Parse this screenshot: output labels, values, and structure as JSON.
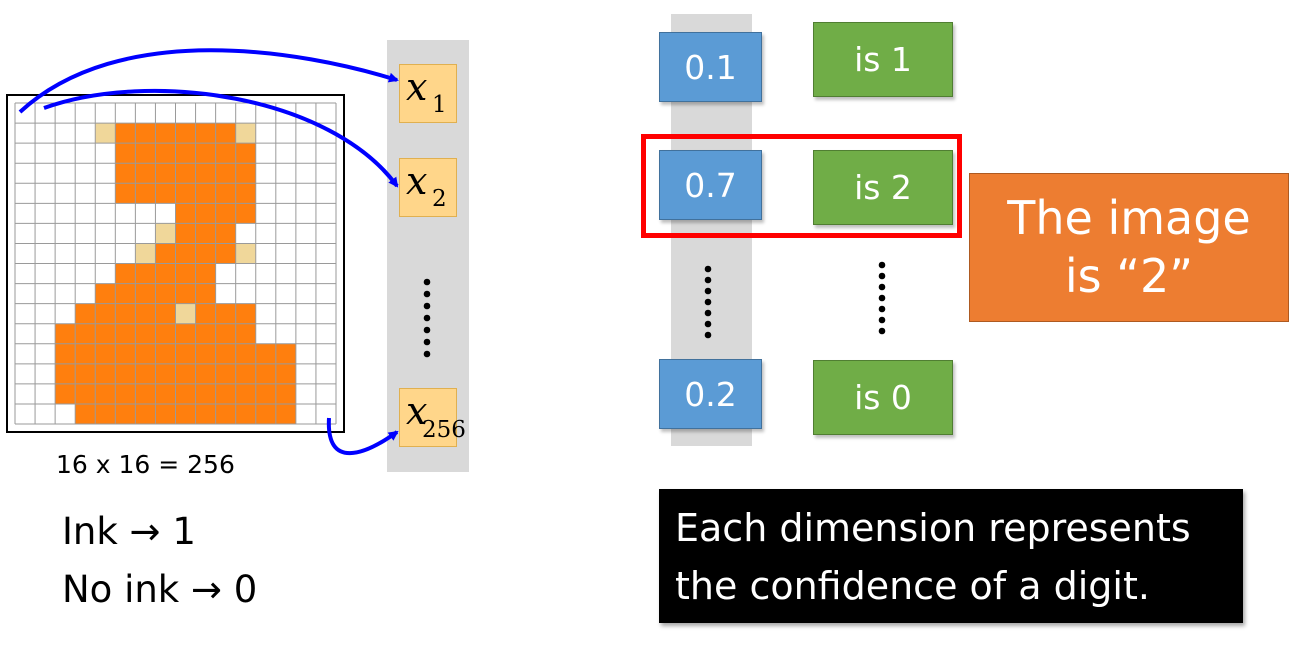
{
  "pixel_grid": {
    "size": 16,
    "ink_color": "#ff7f0e",
    "partial_color": "#f0d79a",
    "ink_cells": [
      [
        1,
        5
      ],
      [
        1,
        6
      ],
      [
        1,
        7
      ],
      [
        1,
        8
      ],
      [
        1,
        9
      ],
      [
        1,
        10
      ],
      [
        2,
        5
      ],
      [
        2,
        6
      ],
      [
        2,
        7
      ],
      [
        2,
        8
      ],
      [
        2,
        9
      ],
      [
        2,
        10
      ],
      [
        2,
        11
      ],
      [
        3,
        5
      ],
      [
        3,
        6
      ],
      [
        3,
        7
      ],
      [
        3,
        8
      ],
      [
        3,
        9
      ],
      [
        3,
        10
      ],
      [
        3,
        11
      ],
      [
        4,
        5
      ],
      [
        4,
        6
      ],
      [
        4,
        7
      ],
      [
        4,
        8
      ],
      [
        4,
        9
      ],
      [
        4,
        10
      ],
      [
        4,
        11
      ],
      [
        5,
        8
      ],
      [
        5,
        9
      ],
      [
        5,
        10
      ],
      [
        5,
        11
      ],
      [
        6,
        8
      ],
      [
        6,
        9
      ],
      [
        6,
        10
      ],
      [
        7,
        7
      ],
      [
        7,
        8
      ],
      [
        7,
        9
      ],
      [
        7,
        10
      ],
      [
        8,
        5
      ],
      [
        8,
        6
      ],
      [
        8,
        7
      ],
      [
        8,
        8
      ],
      [
        8,
        9
      ],
      [
        9,
        4
      ],
      [
        9,
        5
      ],
      [
        9,
        6
      ],
      [
        9,
        7
      ],
      [
        9,
        8
      ],
      [
        9,
        9
      ],
      [
        10,
        3
      ],
      [
        10,
        4
      ],
      [
        10,
        5
      ],
      [
        10,
        6
      ],
      [
        10,
        7
      ],
      [
        10,
        9
      ],
      [
        10,
        10
      ],
      [
        10,
        11
      ],
      [
        11,
        2
      ],
      [
        11,
        3
      ],
      [
        11,
        4
      ],
      [
        11,
        5
      ],
      [
        11,
        6
      ],
      [
        11,
        7
      ],
      [
        11,
        8
      ],
      [
        11,
        9
      ],
      [
        11,
        10
      ],
      [
        11,
        11
      ],
      [
        12,
        2
      ],
      [
        12,
        3
      ],
      [
        12,
        4
      ],
      [
        12,
        5
      ],
      [
        12,
        6
      ],
      [
        12,
        7
      ],
      [
        12,
        8
      ],
      [
        12,
        9
      ],
      [
        12,
        10
      ],
      [
        12,
        11
      ],
      [
        12,
        12
      ],
      [
        12,
        13
      ],
      [
        13,
        2
      ],
      [
        13,
        3
      ],
      [
        13,
        4
      ],
      [
        13,
        5
      ],
      [
        13,
        6
      ],
      [
        13,
        7
      ],
      [
        13,
        8
      ],
      [
        13,
        9
      ],
      [
        13,
        10
      ],
      [
        13,
        11
      ],
      [
        13,
        12
      ],
      [
        13,
        13
      ],
      [
        14,
        2
      ],
      [
        14,
        3
      ],
      [
        14,
        4
      ],
      [
        14,
        5
      ],
      [
        14,
        6
      ],
      [
        14,
        7
      ],
      [
        14,
        8
      ],
      [
        14,
        9
      ],
      [
        14,
        10
      ],
      [
        14,
        11
      ],
      [
        14,
        12
      ],
      [
        14,
        13
      ],
      [
        15,
        3
      ],
      [
        15,
        4
      ],
      [
        15,
        5
      ],
      [
        15,
        6
      ],
      [
        15,
        7
      ],
      [
        15,
        8
      ],
      [
        15,
        9
      ],
      [
        15,
        10
      ],
      [
        15,
        11
      ],
      [
        15,
        12
      ],
      [
        15,
        13
      ]
    ],
    "partial_cells": [
      [
        1,
        4
      ],
      [
        1,
        11
      ],
      [
        6,
        7
      ],
      [
        7,
        6
      ],
      [
        7,
        11
      ],
      [
        10,
        8
      ]
    ]
  },
  "grid_caption": "16 x 16 = 256",
  "rules": [
    "Ink → 1",
    "No ink → 0"
  ],
  "inputs": {
    "var": "x",
    "x1_sub": "1",
    "x2_sub": "2",
    "x256_sub": "256"
  },
  "outputs": {
    "y1": "0.1",
    "y2": "0.7",
    "y10": "0.2"
  },
  "labels": {
    "is1": "is 1",
    "is2": "is 2",
    "is0": "is 0"
  },
  "result": {
    "line1": "The image",
    "line2": "is  “2”"
  },
  "note": {
    "line1": "Each dimension represents",
    "line2": "the confidence of a digit."
  },
  "colors": {
    "arrow": "#0000ff",
    "highlight": "#ff0000"
  }
}
